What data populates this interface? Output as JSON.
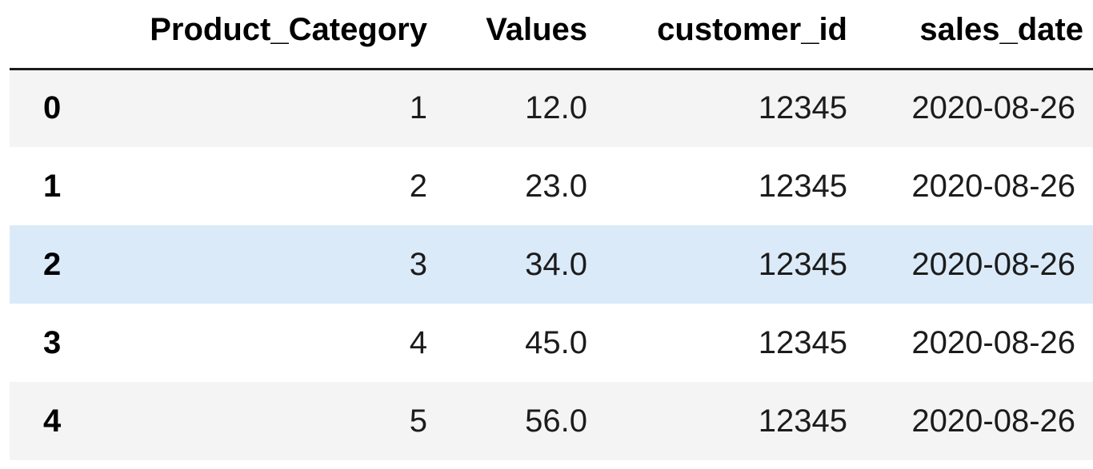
{
  "dataframe": {
    "columns": [
      "Product_Category",
      "Values",
      "customer_id",
      "sales_date"
    ],
    "rows": [
      {
        "index": "0",
        "cells": [
          "1",
          "12.0",
          "12345",
          "2020-08-26"
        ]
      },
      {
        "index": "1",
        "cells": [
          "2",
          "23.0",
          "12345",
          "2020-08-26"
        ]
      },
      {
        "index": "2",
        "cells": [
          "3",
          "34.0",
          "12345",
          "2020-08-26"
        ]
      },
      {
        "index": "3",
        "cells": [
          "4",
          "45.0",
          "12345",
          "2020-08-26"
        ]
      },
      {
        "index": "4",
        "cells": [
          "5",
          "56.0",
          "12345",
          "2020-08-26"
        ]
      }
    ],
    "colors": {
      "stripe": "#f4f4f4",
      "hover": "#dbeaf8",
      "header_rule": "#1a1a1a"
    },
    "highlighted_row": 2
  }
}
